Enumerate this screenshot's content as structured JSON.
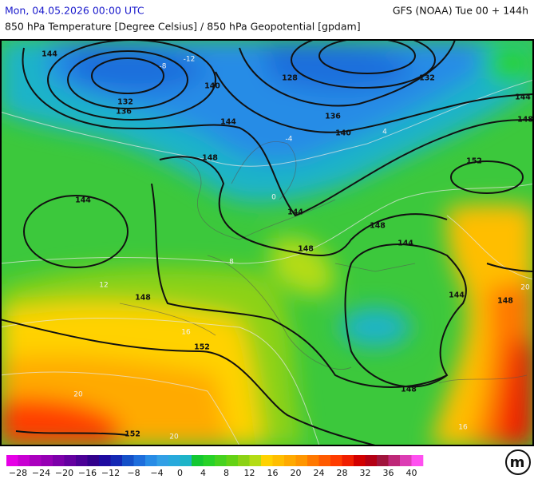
{
  "header": {
    "datetime": "Mon, 04.05.2026 00:00 UTC",
    "model": "GFS (NOAA) Tue 00 + 144h",
    "subtitle": "850 hPa Temperature [Degree Celsius] / 850 hPa Geopotential [gpdam]"
  },
  "contour_labels": [
    144,
    132,
    136,
    140,
    128,
    132,
    136,
    140,
    144,
    148,
    144,
    144,
    148,
    148,
    148,
    144,
    152,
    144,
    148,
    144,
    148,
    152,
    148,
    152
  ],
  "temperature_labels": [
    "-12",
    "-8",
    "-4",
    "0",
    "4",
    "8",
    "12",
    "16",
    "20",
    "20",
    "16",
    "20"
  ],
  "colorbar": {
    "colors": [
      "#e600e6",
      "#c800d2",
      "#aa00be",
      "#9600b4",
      "#7d00aa",
      "#6400a0",
      "#4b0096",
      "#32008c",
      "#1e0aa0",
      "#1428b4",
      "#1450c8",
      "#1e6edc",
      "#288ce6",
      "#32a0e6",
      "#28aadc",
      "#1eb4c8",
      "#14c832",
      "#28d228",
      "#46d21e",
      "#64d214",
      "#8cd214",
      "#b4dc14",
      "#ffd200",
      "#ffbe00",
      "#ffaa00",
      "#ff9600",
      "#ff7800",
      "#ff5a00",
      "#ff3c00",
      "#f01e00",
      "#d20000",
      "#b40014",
      "#a0143c",
      "#be2878",
      "#dc3cb4",
      "#ff50f0"
    ],
    "labels": [
      "−28",
      "−24",
      "−20",
      "−16",
      "−12",
      "−8",
      "−4",
      "0",
      "4",
      "8",
      "12",
      "16",
      "20",
      "24",
      "28",
      "32",
      "36",
      "40"
    ]
  },
  "logo": "m"
}
